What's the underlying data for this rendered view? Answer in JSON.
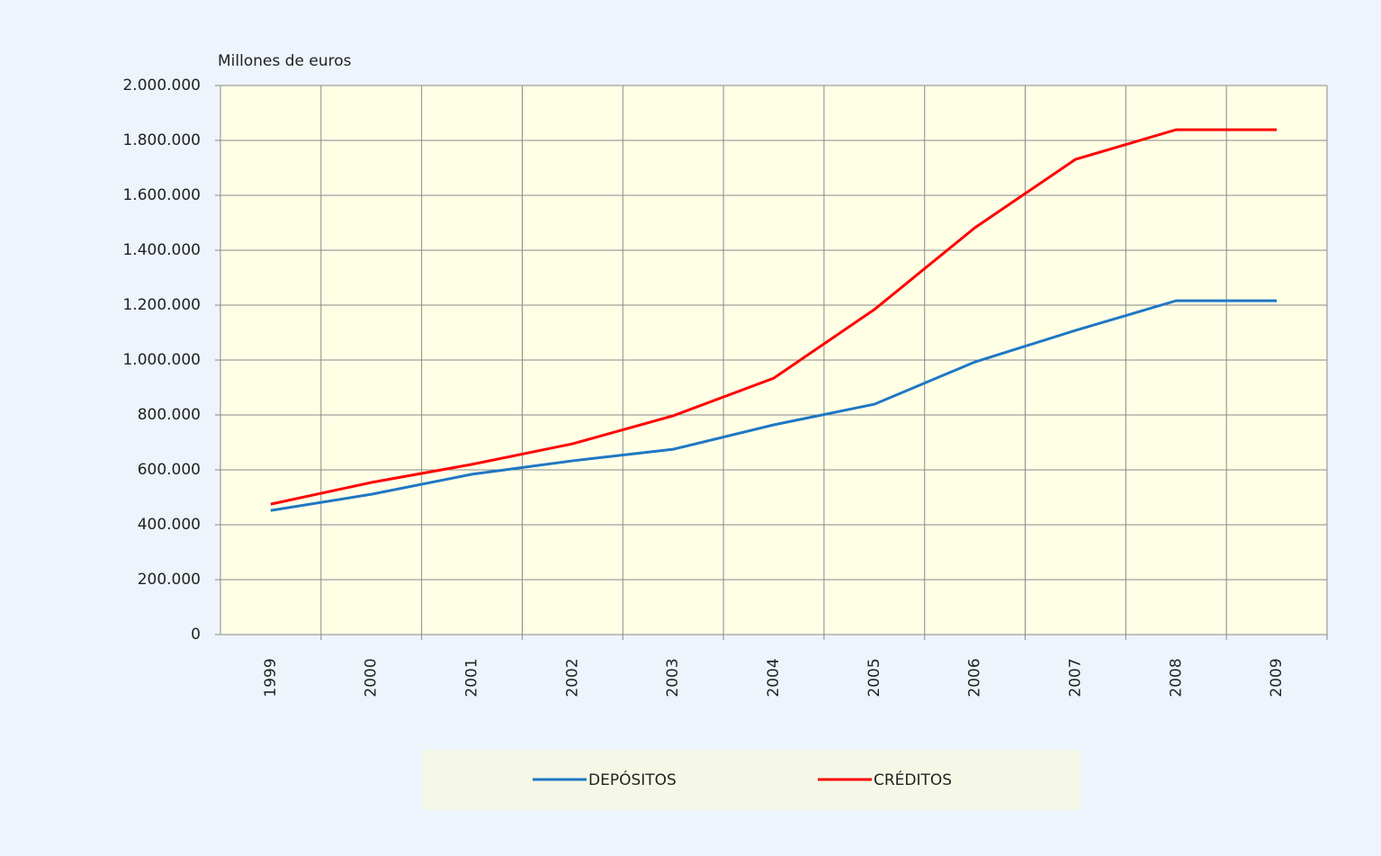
{
  "chart_data": {
    "type": "line",
    "y_label": "Millones de euros",
    "categories": [
      "1999",
      "2000",
      "2001",
      "2002",
      "2003",
      "2004",
      "2005",
      "2006",
      "2007",
      "2008",
      "2009"
    ],
    "series": [
      {
        "name": "DEPÓSITOS",
        "color": "#1f77c4",
        "values": [
          452000,
          511000,
          584000,
          633000,
          675000,
          764000,
          839000,
          993000,
          1108000,
          1216000,
          1216000
        ]
      },
      {
        "name": "CRÉDITOS",
        "color": "#ff0000",
        "values": [
          475000,
          554000,
          620000,
          695000,
          797000,
          934000,
          1184000,
          1482000,
          1731000,
          1839000,
          1839000
        ]
      }
    ],
    "ylim": [
      0,
      2000000
    ],
    "yticks": [
      0,
      {
        "value": 200000,
        "label": "200.000"
      },
      {
        "value": 400000,
        "label": "400.000"
      },
      {
        "value": 600000,
        "label": "600.000"
      },
      {
        "value": 800000,
        "label": "800.000"
      },
      {
        "value": 1000000,
        "label": "1.000.000"
      },
      {
        "value": 1200000,
        "label": "1.200.000"
      },
      {
        "value": 1400000,
        "label": "1.400.000"
      },
      {
        "value": 1600000,
        "label": "1.600.000"
      },
      {
        "value": 1800000,
        "label": "1.800.000"
      },
      {
        "value": 2000000,
        "label": "2.000.000"
      }
    ],
    "grid": true,
    "legend": "bottom"
  }
}
